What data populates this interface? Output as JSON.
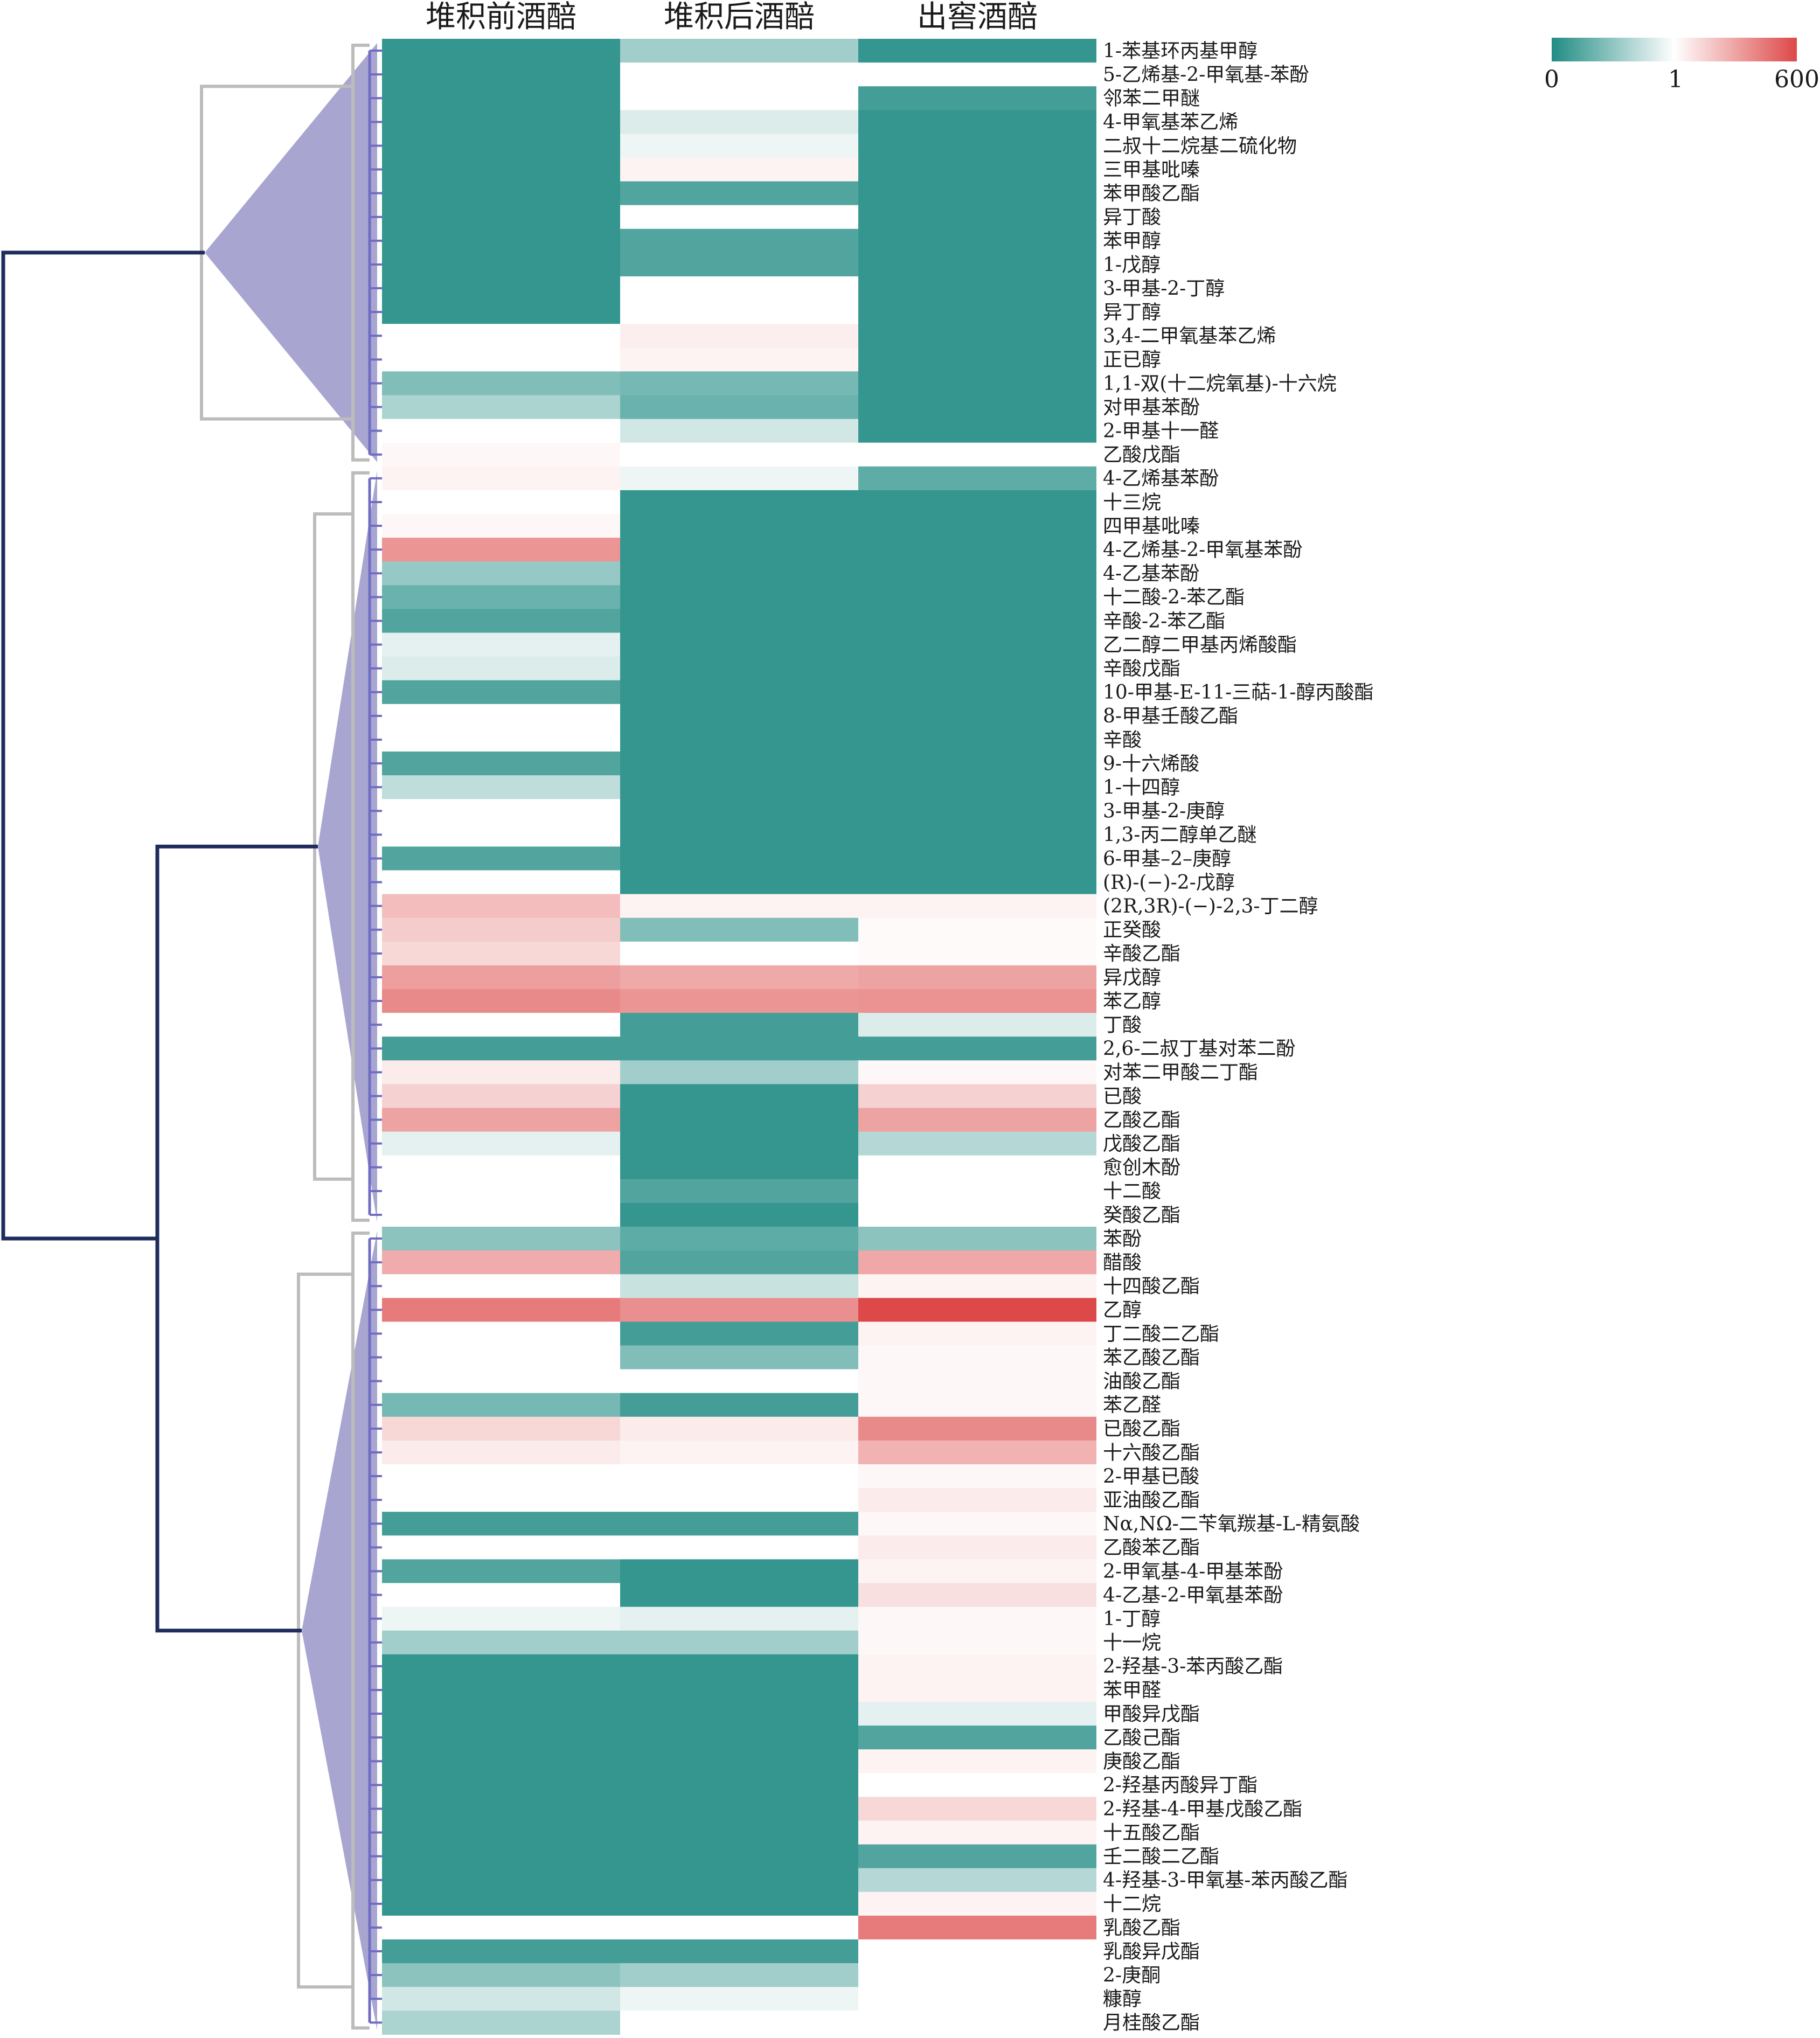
{
  "chart_data": {
    "type": "heatmap",
    "columns": [
      "堆积前酒醅",
      "堆积后酒醅",
      "出窖酒醅"
    ],
    "colorbar": {
      "ticks": [
        "0",
        "1",
        "600"
      ],
      "colors": {
        "low": "#218c84",
        "mid": "#ffffff",
        "high": "#dd4848"
      }
    },
    "rows": [
      "1-苯基环丙基甲醇",
      "5-乙烯基-2-甲氧基-苯酚",
      "邻苯二甲醚",
      "4-甲氧基苯乙烯",
      "二叔十二烷基二硫化物",
      "三甲基吡嗪",
      "苯甲酸乙酯",
      "异丁酸",
      "苯甲醇",
      "1-戊醇",
      "3-甲基-2-丁醇",
      "异丁醇",
      "3,4-二甲氧基苯乙烯",
      "正已醇",
      "1,1-双(十二烷氧基)-十六烷",
      "对甲基苯酚",
      "2-甲基十一醛",
      "乙酸戊酯",
      "4-乙烯基苯酚",
      "十三烷",
      "四甲基吡嗪",
      "4-乙烯基-2-甲氧基苯酚",
      "4-乙基苯酚",
      "十二酸-2-苯乙酯",
      "辛酸-2-苯乙酯",
      "乙二醇二甲基丙烯酸酯",
      "辛酸戊酯",
      "10-甲基-E-11-三萜-1-醇丙酸酯",
      "8-甲基壬酸乙酯",
      "辛酸",
      "9-十六烯酸",
      "1-十四醇",
      "3-甲基-2-庚醇",
      "1,3-丙二醇单乙醚",
      "6-甲基–2–庚醇",
      "(R)-(−)-2-戊醇",
      "(2R,3R)-(−)-2,3-丁二醇",
      "正癸酸",
      "辛酸乙酯",
      "异戊醇",
      "苯乙醇",
      "丁酸",
      "2,6-二叔丁基对苯二酚",
      "对苯二甲酸二丁酯",
      "已酸",
      "乙酸乙酯",
      "戊酸乙酯",
      "愈创木酚",
      "十二酸",
      "癸酸乙酯",
      "苯酚",
      "醋酸",
      "十四酸乙酯",
      "乙醇",
      "丁二酸二乙酯",
      "苯乙酸乙酯",
      "油酸乙酯",
      "苯乙醛",
      "已酸乙酯",
      "十六酸乙酯",
      "2-甲基已酸",
      "亚油酸乙酯",
      "Nα,NΩ-二苄氧羰基-L-精氨酸",
      "乙酸苯乙酯",
      "2-甲氧基-4-甲基苯酚",
      "4-乙基-2-甲氧基苯酚",
      "1-丁醇",
      "十一烷",
      "2-羟基-3-苯丙酸乙酯",
      "苯甲醛",
      "甲酸异戊酯",
      "乙酸己酯",
      "庚酸乙酯",
      "2-羟基丙酸异丁酯",
      "2-羟基-4-甲基戊酸乙酯",
      "十五酸乙酯",
      "壬二酸二乙酯",
      "4-羟基-3-甲氧基-苯丙酸乙酯",
      "十二烷",
      "乳酸乙酯",
      "乳酸异戊酯",
      "2-庚酮",
      "糠醇",
      "月桂酸乙酯"
    ],
    "values": [
      [
        0.05,
        0.5,
        0.05
      ],
      [
        0.05,
        1,
        1
      ],
      [
        0.05,
        1,
        0.1
      ],
      [
        0.05,
        0.8,
        0.05
      ],
      [
        0.05,
        0.9,
        0.05
      ],
      [
        0.05,
        1.5,
        0.05
      ],
      [
        0.05,
        0.15,
        0.05
      ],
      [
        0.05,
        1,
        0.05
      ],
      [
        0.05,
        0.15,
        0.05
      ],
      [
        0.05,
        0.15,
        0.05
      ],
      [
        0.05,
        1,
        0.05
      ],
      [
        0.05,
        1,
        0.05
      ],
      [
        1,
        1.8,
        0.05
      ],
      [
        1,
        1.5,
        0.05
      ],
      [
        0.35,
        0.3,
        0.05
      ],
      [
        0.55,
        0.25,
        0.05
      ],
      [
        1,
        0.75,
        0.05
      ],
      [
        1.3,
        1,
        1
      ],
      [
        1.5,
        0.9,
        0.2
      ],
      [
        1,
        0.05,
        0.05
      ],
      [
        1.3,
        0.05,
        0.05
      ],
      [
        40,
        0.05,
        0.05
      ],
      [
        0.45,
        0.05,
        0.05
      ],
      [
        0.25,
        0.05,
        0.05
      ],
      [
        0.15,
        0.05,
        0.05
      ],
      [
        0.85,
        0.05,
        0.05
      ],
      [
        0.8,
        0.05,
        0.05
      ],
      [
        0.15,
        0.05,
        0.05
      ],
      [
        1,
        0.05,
        0.05
      ],
      [
        1,
        0.05,
        0.05
      ],
      [
        0.15,
        0.05,
        0.05
      ],
      [
        0.65,
        0.05,
        0.05
      ],
      [
        1,
        0.05,
        0.05
      ],
      [
        1,
        0.05,
        0.05
      ],
      [
        0.15,
        0.05,
        0.05
      ],
      [
        1,
        0.05,
        0.05
      ],
      [
        10,
        1.5,
        1.5
      ],
      [
        6,
        0.35,
        1.2
      ],
      [
        4,
        1,
        1.2
      ],
      [
        30,
        20,
        25
      ],
      [
        60,
        40,
        45
      ],
      [
        1,
        0.1,
        0.8
      ],
      [
        0.1,
        0.1,
        0.1
      ],
      [
        2,
        0.5,
        1.3
      ],
      [
        5,
        0.05,
        5
      ],
      [
        25,
        0.05,
        25
      ],
      [
        0.85,
        0.05,
        0.6
      ],
      [
        1,
        0.05,
        1
      ],
      [
        1,
        0.15,
        1
      ],
      [
        1,
        0.05,
        1
      ],
      [
        0.4,
        0.2,
        0.4
      ],
      [
        18,
        0.15,
        22
      ],
      [
        1,
        0.7,
        1.5
      ],
      [
        100,
        50,
        600
      ],
      [
        1,
        0.1,
        1.5
      ],
      [
        1,
        0.35,
        1.3
      ],
      [
        1,
        1,
        1.3
      ],
      [
        0.3,
        0.1,
        1.3
      ],
      [
        4,
        2,
        60
      ],
      [
        2,
        1.5,
        15
      ],
      [
        1,
        1,
        1.3
      ],
      [
        1,
        1,
        2
      ],
      [
        0.1,
        0.1,
        1.3
      ],
      [
        1,
        1,
        2
      ],
      [
        0.15,
        0.05,
        1.5
      ],
      [
        1,
        0.05,
        3
      ],
      [
        0.9,
        0.85,
        1.3
      ],
      [
        0.5,
        0.5,
        1.3
      ],
      [
        0.05,
        0.05,
        1.5
      ],
      [
        0.05,
        0.05,
        1.5
      ],
      [
        0.05,
        0.05,
        0.85
      ],
      [
        0.05,
        0.05,
        0.15
      ],
      [
        0.05,
        0.05,
        1.5
      ],
      [
        0.05,
        0.05,
        1
      ],
      [
        0.05,
        0.05,
        4
      ],
      [
        0.05,
        0.05,
        1.5
      ],
      [
        0.05,
        0.05,
        0.15
      ],
      [
        0.05,
        0.05,
        0.6
      ],
      [
        0.05,
        0.05,
        1.5
      ],
      [
        1,
        1,
        100
      ],
      [
        0.1,
        0.1,
        1
      ],
      [
        0.4,
        0.5,
        1
      ],
      [
        0.75,
        0.9,
        1
      ],
      [
        0.55,
        1,
        1
      ]
    ],
    "dendrogram": {
      "colors": {
        "root": "#1e2d5e",
        "branch": "#bcbcbc",
        "leaf": "#6f6cc2",
        "fill": "#a8a6d1"
      }
    }
  }
}
